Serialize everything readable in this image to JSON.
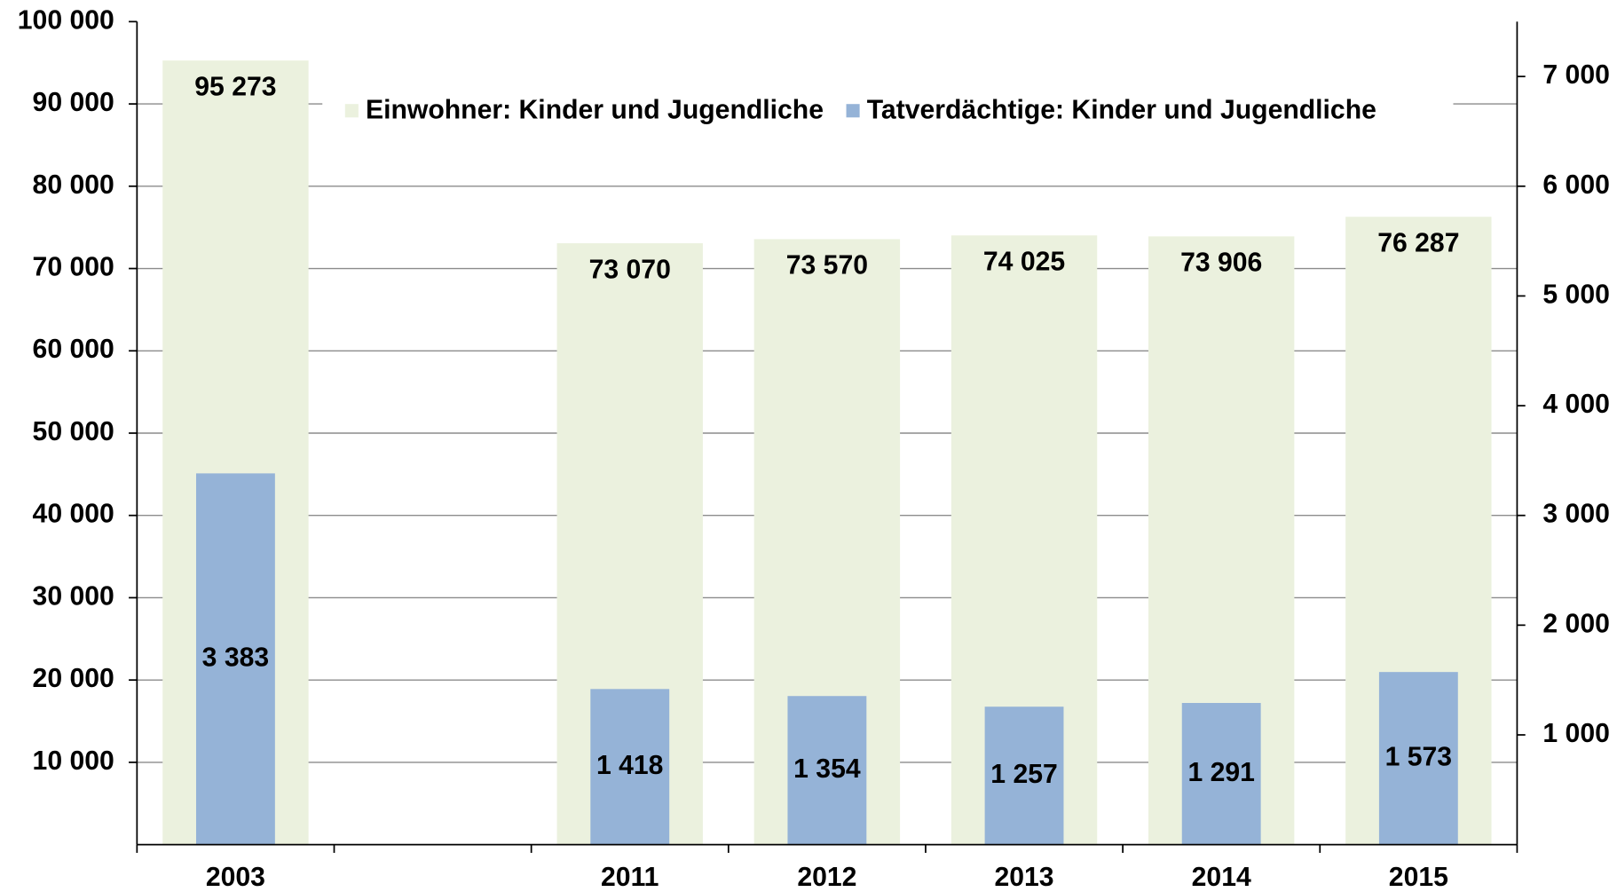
{
  "chart_data": {
    "type": "bar",
    "categories": [
      "2003",
      null,
      "2011",
      "2012",
      "2013",
      "2014",
      "2015"
    ],
    "series": [
      {
        "name": "Einwohner: Kinder und Jugendliche",
        "color": "#ebf1de",
        "values": [
          95273,
          null,
          73070,
          73570,
          74025,
          73906,
          76287
        ],
        "value_labels": [
          "95 273",
          null,
          "73 070",
          "73 570",
          "74 025",
          "73 906",
          "76 287"
        ]
      },
      {
        "name": "Tatverdächtige: Kinder und Jugendliche",
        "color": "#95b3d7",
        "axis": "y2",
        "values": [
          3383,
          null,
          1418,
          1354,
          1257,
          1291,
          1573
        ],
        "value_labels": [
          "3 383",
          null,
          "1 418",
          "1 354",
          "1 257",
          "1 291",
          "1 573"
        ]
      }
    ],
    "ylim": [
      0,
      100000
    ],
    "yticks": [
      {
        "value": 10000,
        "label": "10 000"
      },
      {
        "value": 20000,
        "label": "20 000"
      },
      {
        "value": 30000,
        "label": "30 000"
      },
      {
        "value": 40000,
        "label": "40 000"
      },
      {
        "value": 50000,
        "label": "50 000"
      },
      {
        "value": 60000,
        "label": "60 000"
      },
      {
        "value": 70000,
        "label": "70 000"
      },
      {
        "value": 80000,
        "label": "80 000"
      },
      {
        "value": 90000,
        "label": "90 000"
      },
      {
        "value": 100000,
        "label": "100 000"
      }
    ],
    "y2lim": [
      0,
      7500
    ],
    "y2ticks": [
      {
        "value": 1000,
        "label": "1 000"
      },
      {
        "value": 2000,
        "label": "2 000"
      },
      {
        "value": 3000,
        "label": "3 000"
      },
      {
        "value": 4000,
        "label": "4 000"
      },
      {
        "value": 5000,
        "label": "5 000"
      },
      {
        "value": 6000,
        "label": "6 000"
      },
      {
        "value": 7000,
        "label": "7 000"
      }
    ],
    "grid": true
  }
}
